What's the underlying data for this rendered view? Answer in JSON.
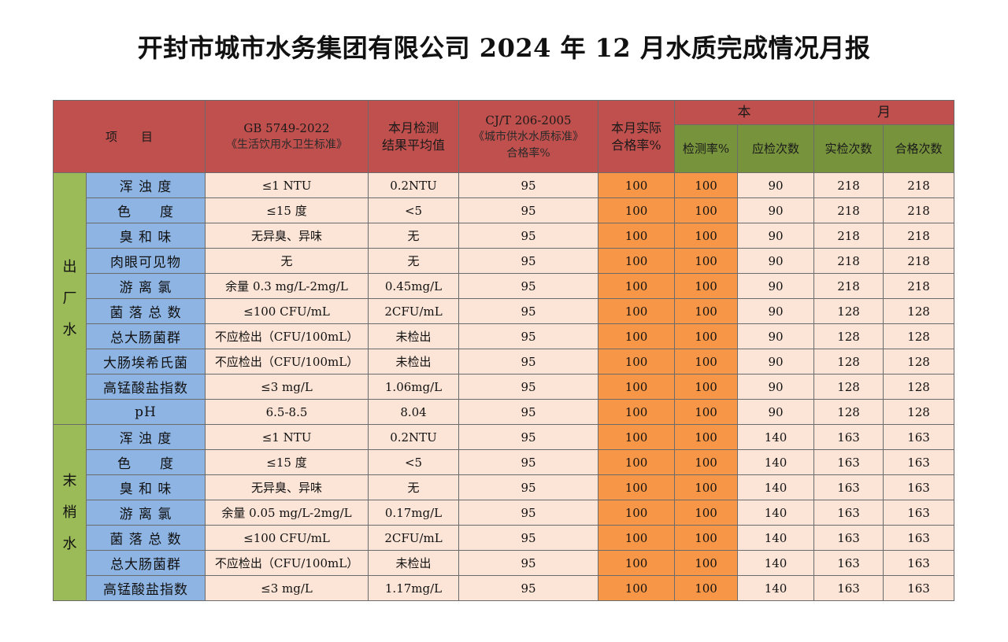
{
  "title": "开封市城市水务集团有限公司 2024 年 12 月水质完成情况月报",
  "headers": {
    "item": "项　　目",
    "gb_line1": "GB 5749-2022",
    "gb_line2": "《生活饮用水卫生标准》",
    "avg_line1": "本月检测",
    "avg_line2": "结果平均值",
    "cj_line1": "CJ/T 206-2005",
    "cj_line2": "《城市供水水质标准》",
    "cj_line3": "合格率%",
    "actual_line1": "本月实际",
    "actual_line2": "合格率%",
    "month_a": "本",
    "month_b": "月",
    "detect_rate": "检测率%",
    "should_count": "应检次数",
    "actual_count": "实检次数",
    "pass_count": "合格次数"
  },
  "groups": {
    "factory": [
      "出",
      "厂",
      "水"
    ],
    "tap": [
      "末",
      "梢",
      "水"
    ]
  },
  "rows": [
    {
      "item": "浑 浊 度",
      "gb": "≤1 NTU",
      "avg": "0.2NTU",
      "cj": "95",
      "actual": "100",
      "detect": "100",
      "should": "90",
      "done": "218",
      "pass": "218"
    },
    {
      "item": "色　　度",
      "gb": "≤15 度",
      "avg": "<5",
      "cj": "95",
      "actual": "100",
      "detect": "100",
      "should": "90",
      "done": "218",
      "pass": "218"
    },
    {
      "item": "臭 和 味",
      "gb": "无异臭、异味",
      "avg": "无",
      "cj": "95",
      "actual": "100",
      "detect": "100",
      "should": "90",
      "done": "218",
      "pass": "218"
    },
    {
      "item": "肉眼可见物",
      "gb": "无",
      "avg": "无",
      "cj": "95",
      "actual": "100",
      "detect": "100",
      "should": "90",
      "done": "218",
      "pass": "218"
    },
    {
      "item": "游 离 氯",
      "gb": "余量 0.3 mg/L-2mg/L",
      "avg": "0.45mg/L",
      "cj": "95",
      "actual": "100",
      "detect": "100",
      "should": "90",
      "done": "218",
      "pass": "218"
    },
    {
      "item": "菌 落 总 数",
      "gb": "≤100 CFU/mL",
      "avg": "2CFU/mL",
      "cj": "95",
      "actual": "100",
      "detect": "100",
      "should": "90",
      "done": "128",
      "pass": "128"
    },
    {
      "item": "总大肠菌群",
      "gb": "不应检出（CFU/100mL）",
      "avg": "未检出",
      "cj": "95",
      "actual": "100",
      "detect": "100",
      "should": "90",
      "done": "128",
      "pass": "128"
    },
    {
      "item": "大肠埃希氏菌",
      "gb": "不应检出（CFU/100mL）",
      "avg": "未检出",
      "cj": "95",
      "actual": "100",
      "detect": "100",
      "should": "90",
      "done": "128",
      "pass": "128"
    },
    {
      "item": "高锰酸盐指数",
      "gb": "≤3 mg/L",
      "avg": "1.06mg/L",
      "cj": "95",
      "actual": "100",
      "detect": "100",
      "should": "90",
      "done": "128",
      "pass": "128"
    },
    {
      "item": "pH",
      "gb": "6.5-8.5",
      "avg": "8.04",
      "cj": "95",
      "actual": "100",
      "detect": "100",
      "should": "90",
      "done": "128",
      "pass": "128"
    },
    {
      "item": "浑 浊 度",
      "gb": "≤1 NTU",
      "avg": "0.2NTU",
      "cj": "95",
      "actual": "100",
      "detect": "100",
      "should": "140",
      "done": "163",
      "pass": "163"
    },
    {
      "item": "色　　度",
      "gb": "≤15 度",
      "avg": "<5",
      "cj": "95",
      "actual": "100",
      "detect": "100",
      "should": "140",
      "done": "163",
      "pass": "163"
    },
    {
      "item": "臭 和 味",
      "gb": "无异臭、异味",
      "avg": "无",
      "cj": "95",
      "actual": "100",
      "detect": "100",
      "should": "140",
      "done": "163",
      "pass": "163"
    },
    {
      "item": "游 离 氯",
      "gb": "余量 0.05 mg/L-2mg/L",
      "avg": "0.17mg/L",
      "cj": "95",
      "actual": "100",
      "detect": "100",
      "should": "140",
      "done": "163",
      "pass": "163"
    },
    {
      "item": "菌 落 总 数",
      "gb": "≤100 CFU/mL",
      "avg": "2CFU/mL",
      "cj": "95",
      "actual": "100",
      "detect": "100",
      "should": "140",
      "done": "163",
      "pass": "163"
    },
    {
      "item": "总大肠菌群",
      "gb": "不应检出（CFU/100mL）",
      "avg": "未检出",
      "cj": "95",
      "actual": "100",
      "detect": "100",
      "should": "140",
      "done": "163",
      "pass": "163"
    },
    {
      "item": "高锰酸盐指数",
      "gb": "≤3 mg/L",
      "avg": "1.17mg/L",
      "cj": "95",
      "actual": "100",
      "detect": "100",
      "should": "140",
      "done": "163",
      "pass": "163"
    }
  ]
}
